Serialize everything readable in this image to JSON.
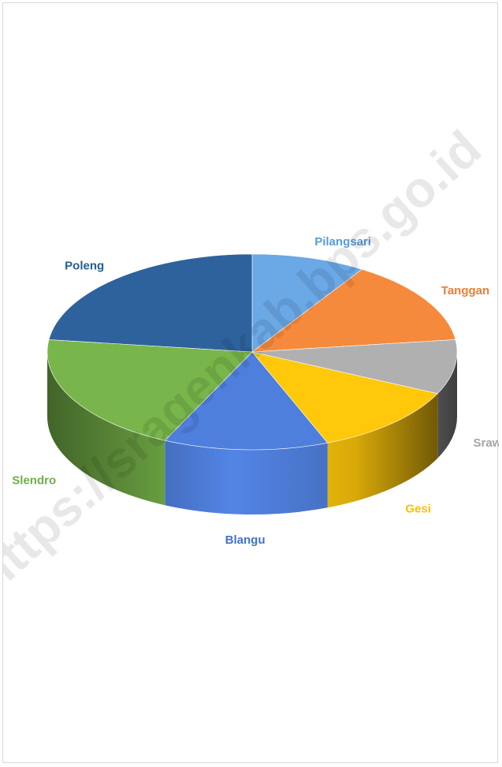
{
  "chart_data": {
    "type": "pie",
    "style": "3d",
    "title": "",
    "categories": [
      "Pilangsari",
      "Tanggan",
      "Srawung",
      "Gesi",
      "Blangu",
      "Slendro",
      "Poleng"
    ],
    "values": [
      9,
      14,
      9,
      12,
      13,
      20,
      23
    ],
    "colors": [
      "#6aa8e6",
      "#f58a3c",
      "#b0b0b0",
      "#ffc80a",
      "#4f7fdc",
      "#78b54a",
      "#2e629c"
    ],
    "label_colors": [
      "#5b9bd5",
      "#ed7d31",
      "#a5a5a5",
      "#ffc000",
      "#4472c4",
      "#70ad47",
      "#255e91"
    ],
    "legend": "none",
    "data_labels": "category names outside slices"
  },
  "watermark": "https://sragenkab.bps.go.id"
}
